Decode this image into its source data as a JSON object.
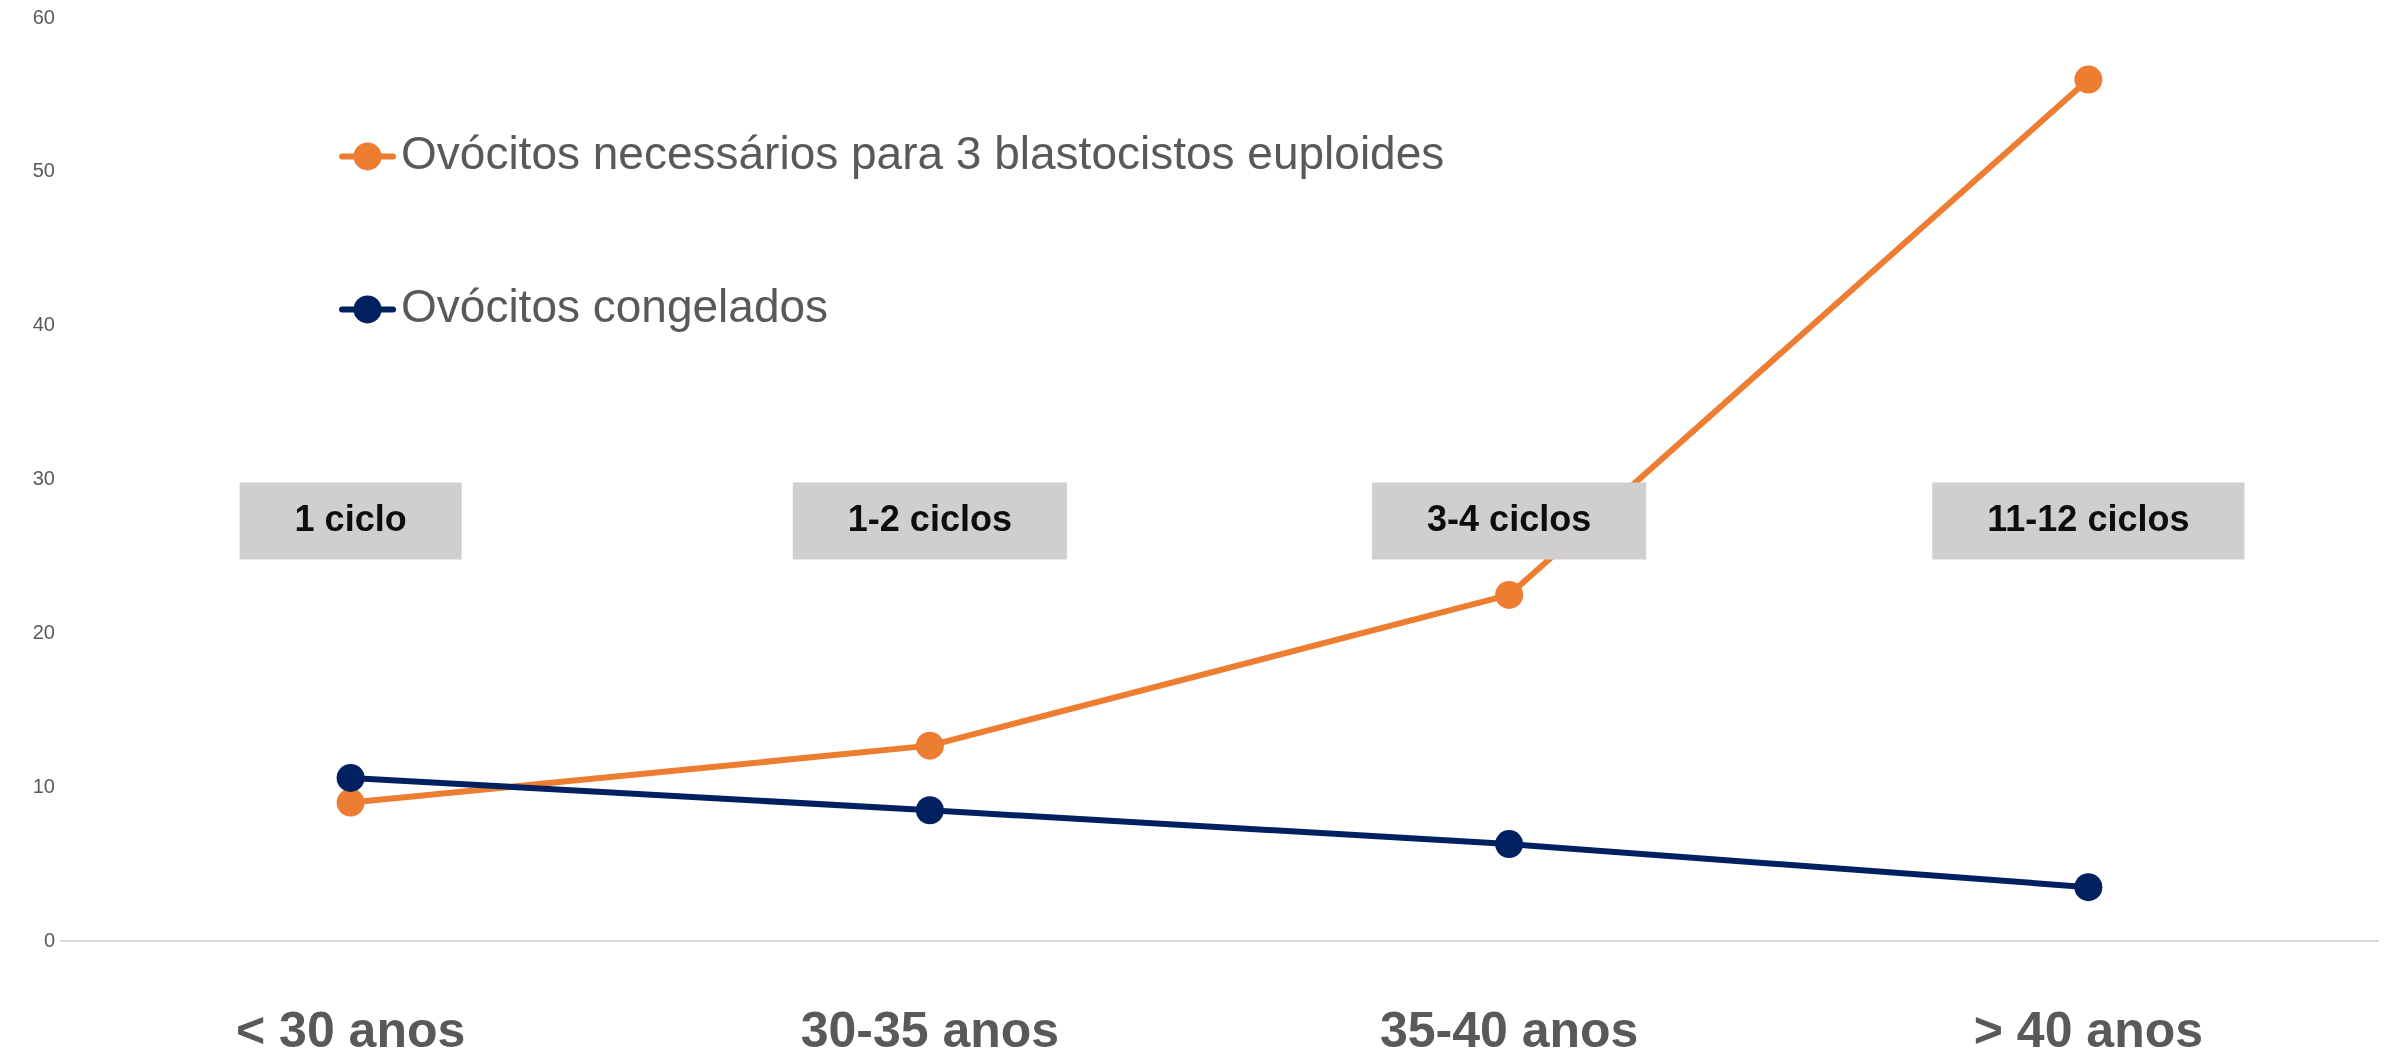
{
  "chart_data": {
    "type": "line",
    "categories": [
      "< 30 anos",
      "30-35 anos",
      "35-40 anos",
      "> 40 anos"
    ],
    "series": [
      {
        "name": "Ovócitos necessários para 3 blastocistos euploides",
        "color": "#ed7d31",
        "values": [
          9,
          12.7,
          22.5,
          56
        ]
      },
      {
        "name": "Ovócitos congelados",
        "color": "#002060",
        "values": [
          10.6,
          8.5,
          6.3,
          3.5
        ]
      }
    ],
    "ylim": [
      0,
      60
    ],
    "yticks": [
      0,
      10,
      20,
      30,
      40,
      50,
      60
    ],
    "grid": false,
    "legend": "top left",
    "marker": "circle",
    "line_style": "solid",
    "annotations": [
      "1 ciclo",
      "1-2 ciclos",
      "3-4 ciclos",
      "11-12 ciclos"
    ]
  }
}
